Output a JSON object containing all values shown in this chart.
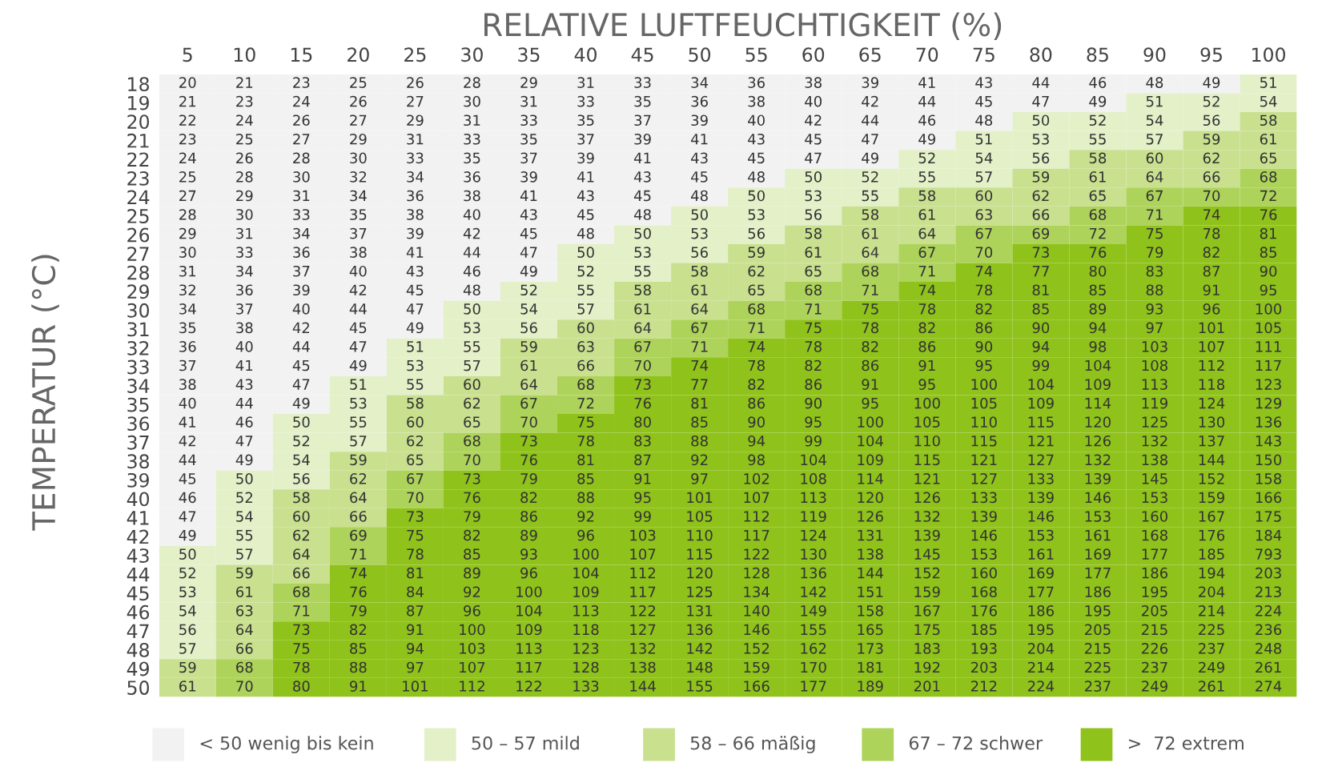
{
  "chart_data": {
    "type": "heatmap",
    "title": "RELATIVE LUFTFEUCHTIGKEIT (%)",
    "ylabel": "TEMPERATUR (°C)",
    "categories": [
      "5",
      "10",
      "15",
      "20",
      "25",
      "30",
      "35",
      "40",
      "45",
      "50",
      "55",
      "60",
      "65",
      "70",
      "75",
      "80",
      "85",
      "90",
      "95",
      "100"
    ],
    "y_categories": [
      "18",
      "19",
      "20",
      "21",
      "22",
      "23",
      "24",
      "25",
      "26",
      "27",
      "28",
      "29",
      "30",
      "31",
      "32",
      "33",
      "34",
      "35",
      "36",
      "37",
      "38",
      "39",
      "40",
      "41",
      "42",
      "43",
      "44",
      "45",
      "46",
      "47",
      "48",
      "49",
      "50"
    ],
    "cells": [
      [
        20,
        21,
        23,
        25,
        26,
        28,
        29,
        31,
        33,
        34,
        36,
        38,
        39,
        41,
        43,
        44,
        46,
        48,
        49,
        51
      ],
      [
        21,
        23,
        24,
        26,
        27,
        30,
        31,
        33,
        35,
        36,
        38,
        40,
        42,
        44,
        45,
        47,
        49,
        51,
        52,
        54
      ],
      [
        22,
        24,
        26,
        27,
        29,
        31,
        33,
        35,
        37,
        39,
        40,
        42,
        44,
        46,
        48,
        50,
        52,
        54,
        56,
        58
      ],
      [
        23,
        25,
        27,
        29,
        31,
        33,
        35,
        37,
        39,
        41,
        43,
        45,
        47,
        49,
        51,
        53,
        55,
        57,
        59,
        61
      ],
      [
        24,
        26,
        28,
        30,
        33,
        35,
        37,
        39,
        41,
        43,
        45,
        47,
        49,
        52,
        54,
        56,
        58,
        60,
        62,
        65
      ],
      [
        25,
        28,
        30,
        32,
        34,
        36,
        39,
        41,
        43,
        45,
        48,
        50,
        52,
        55,
        57,
        59,
        61,
        64,
        66,
        68
      ],
      [
        27,
        29,
        31,
        34,
        36,
        38,
        41,
        43,
        45,
        48,
        50,
        53,
        55,
        58,
        60,
        62,
        65,
        67,
        70,
        72
      ],
      [
        28,
        30,
        33,
        35,
        38,
        40,
        43,
        45,
        48,
        50,
        53,
        56,
        58,
        61,
        63,
        66,
        68,
        71,
        74,
        76
      ],
      [
        29,
        31,
        34,
        37,
        39,
        42,
        45,
        48,
        50,
        53,
        56,
        58,
        61,
        64,
        67,
        69,
        72,
        75,
        78,
        81
      ],
      [
        30,
        33,
        36,
        38,
        41,
        44,
        47,
        50,
        53,
        56,
        59,
        61,
        64,
        67,
        70,
        73,
        76,
        79,
        82,
        85
      ],
      [
        31,
        34,
        37,
        40,
        43,
        46,
        49,
        52,
        55,
        58,
        62,
        65,
        68,
        71,
        74,
        77,
        80,
        83,
        87,
        90
      ],
      [
        32,
        36,
        39,
        42,
        45,
        48,
        52,
        55,
        58,
        61,
        65,
        68,
        71,
        74,
        78,
        81,
        85,
        88,
        91,
        95
      ],
      [
        34,
        37,
        40,
        44,
        47,
        50,
        54,
        57,
        61,
        64,
        68,
        71,
        75,
        78,
        82,
        85,
        89,
        93,
        96,
        100
      ],
      [
        35,
        38,
        42,
        45,
        49,
        53,
        56,
        60,
        64,
        67,
        71,
        75,
        78,
        82,
        86,
        90,
        94,
        97,
        101,
        105
      ],
      [
        36,
        40,
        44,
        47,
        51,
        55,
        59,
        63,
        67,
        71,
        74,
        78,
        82,
        86,
        90,
        94,
        98,
        103,
        107,
        111
      ],
      [
        37,
        41,
        45,
        49,
        53,
        57,
        61,
        66,
        70,
        74,
        78,
        82,
        86,
        91,
        95,
        99,
        104,
        108,
        112,
        117
      ],
      [
        38,
        43,
        47,
        51,
        55,
        60,
        64,
        68,
        73,
        77,
        82,
        86,
        91,
        95,
        100,
        104,
        109,
        113,
        118,
        123
      ],
      [
        40,
        44,
        49,
        53,
        58,
        62,
        67,
        72,
        76,
        81,
        86,
        90,
        95,
        100,
        105,
        109,
        114,
        119,
        124,
        129
      ],
      [
        41,
        46,
        50,
        55,
        60,
        65,
        70,
        75,
        80,
        85,
        90,
        95,
        100,
        105,
        110,
        115,
        120,
        125,
        130,
        136
      ],
      [
        42,
        47,
        52,
        57,
        62,
        68,
        73,
        78,
        83,
        88,
        94,
        99,
        104,
        110,
        115,
        121,
        126,
        132,
        137,
        143
      ],
      [
        44,
        49,
        54,
        59,
        65,
        70,
        76,
        81,
        87,
        92,
        98,
        104,
        109,
        115,
        121,
        127,
        132,
        138,
        144,
        150
      ],
      [
        45,
        50,
        56,
        62,
        67,
        73,
        79,
        85,
        91,
        97,
        102,
        108,
        114,
        121,
        127,
        133,
        139,
        145,
        152,
        158
      ],
      [
        46,
        52,
        58,
        64,
        70,
        76,
        82,
        88,
        95,
        101,
        107,
        113,
        120,
        126,
        133,
        139,
        146,
        153,
        159,
        166
      ],
      [
        47,
        54,
        60,
        66,
        73,
        79,
        86,
        92,
        99,
        105,
        112,
        119,
        126,
        132,
        139,
        146,
        153,
        160,
        167,
        175
      ],
      [
        49,
        55,
        62,
        69,
        75,
        82,
        89,
        96,
        103,
        110,
        117,
        124,
        131,
        139,
        146,
        153,
        161,
        168,
        176,
        184
      ],
      [
        50,
        57,
        64,
        71,
        78,
        85,
        93,
        100,
        107,
        115,
        122,
        130,
        138,
        145,
        153,
        161,
        169,
        177,
        185,
        793
      ],
      [
        52,
        59,
        66,
        74,
        81,
        89,
        96,
        104,
        112,
        120,
        128,
        136,
        144,
        152,
        160,
        169,
        177,
        186,
        194,
        203
      ],
      [
        53,
        61,
        68,
        76,
        84,
        92,
        100,
        109,
        117,
        125,
        134,
        142,
        151,
        159,
        168,
        177,
        186,
        195,
        204,
        213
      ],
      [
        54,
        63,
        71,
        79,
        87,
        96,
        104,
        113,
        122,
        131,
        140,
        149,
        158,
        167,
        176,
        186,
        195,
        205,
        214,
        224
      ],
      [
        56,
        64,
        73,
        82,
        91,
        100,
        109,
        118,
        127,
        136,
        146,
        155,
        165,
        175,
        185,
        195,
        205,
        215,
        225,
        236
      ],
      [
        57,
        66,
        75,
        85,
        94,
        103,
        113,
        123,
        132,
        142,
        152,
        162,
        173,
        183,
        193,
        204,
        215,
        226,
        237,
        248
      ],
      [
        59,
        68,
        78,
        88,
        97,
        107,
        117,
        128,
        138,
        148,
        159,
        170,
        181,
        192,
        203,
        214,
        225,
        237,
        249,
        261
      ],
      [
        61,
        70,
        80,
        91,
        101,
        112,
        122,
        133,
        144,
        155,
        166,
        177,
        189,
        201,
        212,
        224,
        237,
        249,
        261,
        274
      ]
    ],
    "colors": [
      [
        "#f2f2f2",
        "#f2f2f2",
        "#f2f2f2",
        "#f2f2f2",
        "#f2f2f2",
        "#f2f2f2",
        "#f2f2f2",
        "#f2f2f2",
        "#f2f2f2",
        "#f2f2f2",
        "#f2f2f2",
        "#f2f2f2",
        "#f2f2f2",
        "#f2f2f2",
        "#f2f2f2",
        "#f2f2f2",
        "#f2f2f2",
        "#f2f2f2",
        "#f2f2f2",
        "#e3f0c8"
      ],
      [
        "#f2f2f2",
        "#f2f2f2",
        "#f2f2f2",
        "#f2f2f2",
        "#f2f2f2",
        "#f2f2f2",
        "#f2f2f2",
        "#f2f2f2",
        "#f2f2f2",
        "#f2f2f2",
        "#f2f2f2",
        "#f2f2f2",
        "#f2f2f2",
        "#f2f2f2",
        "#f2f2f2",
        "#f2f2f2",
        "#f2f2f2",
        "#e3f0c8",
        "#e3f0c8",
        "#e3f0c8"
      ],
      [
        "#f2f2f2",
        "#f2f2f2",
        "#f2f2f2",
        "#f2f2f2",
        "#f2f2f2",
        "#f2f2f2",
        "#f2f2f2",
        "#f2f2f2",
        "#f2f2f2",
        "#f2f2f2",
        "#f2f2f2",
        "#f2f2f2",
        "#f2f2f2",
        "#f2f2f2",
        "#f2f2f2",
        "#e3f0c8",
        "#e3f0c8",
        "#e3f0c8",
        "#e3f0c8",
        "#c9e08f"
      ],
      [
        "#f2f2f2",
        "#f2f2f2",
        "#f2f2f2",
        "#f2f2f2",
        "#f2f2f2",
        "#f2f2f2",
        "#f2f2f2",
        "#f2f2f2",
        "#f2f2f2",
        "#f2f2f2",
        "#f2f2f2",
        "#f2f2f2",
        "#f2f2f2",
        "#f2f2f2",
        "#e3f0c8",
        "#e3f0c8",
        "#e3f0c8",
        "#e3f0c8",
        "#c9e08f",
        "#c9e08f"
      ],
      [
        "#f2f2f2",
        "#f2f2f2",
        "#f2f2f2",
        "#f2f2f2",
        "#f2f2f2",
        "#f2f2f2",
        "#f2f2f2",
        "#f2f2f2",
        "#f2f2f2",
        "#f2f2f2",
        "#f2f2f2",
        "#f2f2f2",
        "#f2f2f2",
        "#e3f0c8",
        "#e3f0c8",
        "#e3f0c8",
        "#c9e08f",
        "#c9e08f",
        "#c9e08f",
        "#c9e08f"
      ],
      [
        "#f2f2f2",
        "#f2f2f2",
        "#f2f2f2",
        "#f2f2f2",
        "#f2f2f2",
        "#f2f2f2",
        "#f2f2f2",
        "#f2f2f2",
        "#f2f2f2",
        "#f2f2f2",
        "#f2f2f2",
        "#e3f0c8",
        "#e3f0c8",
        "#e3f0c8",
        "#e3f0c8",
        "#c9e08f",
        "#c9e08f",
        "#c9e08f",
        "#c9e08f",
        "#aed35a"
      ],
      [
        "#f2f2f2",
        "#f2f2f2",
        "#f2f2f2",
        "#f2f2f2",
        "#f2f2f2",
        "#f2f2f2",
        "#f2f2f2",
        "#f2f2f2",
        "#f2f2f2",
        "#f2f2f2",
        "#e3f0c8",
        "#e3f0c8",
        "#e3f0c8",
        "#c9e08f",
        "#c9e08f",
        "#c9e08f",
        "#c9e08f",
        "#aed35a",
        "#aed35a",
        "#aed35a"
      ],
      [
        "#f2f2f2",
        "#f2f2f2",
        "#f2f2f2",
        "#f2f2f2",
        "#f2f2f2",
        "#f2f2f2",
        "#f2f2f2",
        "#f2f2f2",
        "#f2f2f2",
        "#e3f0c8",
        "#e3f0c8",
        "#e3f0c8",
        "#c9e08f",
        "#c9e08f",
        "#c9e08f",
        "#c9e08f",
        "#aed35a",
        "#aed35a",
        "#8fc21a",
        "#8fc21a"
      ],
      [
        "#f2f2f2",
        "#f2f2f2",
        "#f2f2f2",
        "#f2f2f2",
        "#f2f2f2",
        "#f2f2f2",
        "#f2f2f2",
        "#f2f2f2",
        "#e3f0c8",
        "#e3f0c8",
        "#e3f0c8",
        "#c9e08f",
        "#c9e08f",
        "#c9e08f",
        "#aed35a",
        "#aed35a",
        "#aed35a",
        "#8fc21a",
        "#8fc21a",
        "#8fc21a"
      ],
      [
        "#f2f2f2",
        "#f2f2f2",
        "#f2f2f2",
        "#f2f2f2",
        "#f2f2f2",
        "#f2f2f2",
        "#f2f2f2",
        "#e3f0c8",
        "#e3f0c8",
        "#e3f0c8",
        "#c9e08f",
        "#c9e08f",
        "#c9e08f",
        "#aed35a",
        "#aed35a",
        "#8fc21a",
        "#8fc21a",
        "#8fc21a",
        "#8fc21a",
        "#8fc21a"
      ],
      [
        "#f2f2f2",
        "#f2f2f2",
        "#f2f2f2",
        "#f2f2f2",
        "#f2f2f2",
        "#f2f2f2",
        "#f2f2f2",
        "#e3f0c8",
        "#e3f0c8",
        "#c9e08f",
        "#c9e08f",
        "#c9e08f",
        "#aed35a",
        "#aed35a",
        "#8fc21a",
        "#8fc21a",
        "#8fc21a",
        "#8fc21a",
        "#8fc21a",
        "#8fc21a"
      ],
      [
        "#f2f2f2",
        "#f2f2f2",
        "#f2f2f2",
        "#f2f2f2",
        "#f2f2f2",
        "#f2f2f2",
        "#e3f0c8",
        "#e3f0c8",
        "#c9e08f",
        "#c9e08f",
        "#c9e08f",
        "#aed35a",
        "#aed35a",
        "#8fc21a",
        "#8fc21a",
        "#8fc21a",
        "#8fc21a",
        "#8fc21a",
        "#8fc21a",
        "#8fc21a"
      ],
      [
        "#f2f2f2",
        "#f2f2f2",
        "#f2f2f2",
        "#f2f2f2",
        "#f2f2f2",
        "#e3f0c8",
        "#e3f0c8",
        "#e3f0c8",
        "#c9e08f",
        "#c9e08f",
        "#aed35a",
        "#aed35a",
        "#8fc21a",
        "#8fc21a",
        "#8fc21a",
        "#8fc21a",
        "#8fc21a",
        "#8fc21a",
        "#8fc21a",
        "#8fc21a"
      ],
      [
        "#f2f2f2",
        "#f2f2f2",
        "#f2f2f2",
        "#f2f2f2",
        "#f2f2f2",
        "#e3f0c8",
        "#e3f0c8",
        "#c9e08f",
        "#c9e08f",
        "#aed35a",
        "#aed35a",
        "#8fc21a",
        "#8fc21a",
        "#8fc21a",
        "#8fc21a",
        "#8fc21a",
        "#8fc21a",
        "#8fc21a",
        "#8fc21a",
        "#8fc21a"
      ],
      [
        "#f2f2f2",
        "#f2f2f2",
        "#f2f2f2",
        "#f2f2f2",
        "#e3f0c8",
        "#e3f0c8",
        "#c9e08f",
        "#c9e08f",
        "#aed35a",
        "#aed35a",
        "#8fc21a",
        "#8fc21a",
        "#8fc21a",
        "#8fc21a",
        "#8fc21a",
        "#8fc21a",
        "#8fc21a",
        "#8fc21a",
        "#8fc21a",
        "#8fc21a"
      ],
      [
        "#f2f2f2",
        "#f2f2f2",
        "#f2f2f2",
        "#f2f2f2",
        "#e3f0c8",
        "#e3f0c8",
        "#c9e08f",
        "#c9e08f",
        "#aed35a",
        "#8fc21a",
        "#8fc21a",
        "#8fc21a",
        "#8fc21a",
        "#8fc21a",
        "#8fc21a",
        "#8fc21a",
        "#8fc21a",
        "#8fc21a",
        "#8fc21a",
        "#8fc21a"
      ],
      [
        "#f2f2f2",
        "#f2f2f2",
        "#f2f2f2",
        "#e3f0c8",
        "#e3f0c8",
        "#c9e08f",
        "#c9e08f",
        "#aed35a",
        "#8fc21a",
        "#8fc21a",
        "#8fc21a",
        "#8fc21a",
        "#8fc21a",
        "#8fc21a",
        "#8fc21a",
        "#8fc21a",
        "#8fc21a",
        "#8fc21a",
        "#8fc21a",
        "#8fc21a"
      ],
      [
        "#f2f2f2",
        "#f2f2f2",
        "#f2f2f2",
        "#e3f0c8",
        "#c9e08f",
        "#c9e08f",
        "#aed35a",
        "#aed35a",
        "#8fc21a",
        "#8fc21a",
        "#8fc21a",
        "#8fc21a",
        "#8fc21a",
        "#8fc21a",
        "#8fc21a",
        "#8fc21a",
        "#8fc21a",
        "#8fc21a",
        "#8fc21a",
        "#8fc21a"
      ],
      [
        "#f2f2f2",
        "#f2f2f2",
        "#e3f0c8",
        "#e3f0c8",
        "#c9e08f",
        "#c9e08f",
        "#aed35a",
        "#8fc21a",
        "#8fc21a",
        "#8fc21a",
        "#8fc21a",
        "#8fc21a",
        "#8fc21a",
        "#8fc21a",
        "#8fc21a",
        "#8fc21a",
        "#8fc21a",
        "#8fc21a",
        "#8fc21a",
        "#8fc21a"
      ],
      [
        "#f2f2f2",
        "#f2f2f2",
        "#e3f0c8",
        "#e3f0c8",
        "#c9e08f",
        "#aed35a",
        "#8fc21a",
        "#8fc21a",
        "#8fc21a",
        "#8fc21a",
        "#8fc21a",
        "#8fc21a",
        "#8fc21a",
        "#8fc21a",
        "#8fc21a",
        "#8fc21a",
        "#8fc21a",
        "#8fc21a",
        "#8fc21a",
        "#8fc21a"
      ],
      [
        "#f2f2f2",
        "#f2f2f2",
        "#e3f0c8",
        "#c9e08f",
        "#c9e08f",
        "#aed35a",
        "#8fc21a",
        "#8fc21a",
        "#8fc21a",
        "#8fc21a",
        "#8fc21a",
        "#8fc21a",
        "#8fc21a",
        "#8fc21a",
        "#8fc21a",
        "#8fc21a",
        "#8fc21a",
        "#8fc21a",
        "#8fc21a",
        "#8fc21a"
      ],
      [
        "#f2f2f2",
        "#e3f0c8",
        "#e3f0c8",
        "#c9e08f",
        "#aed35a",
        "#8fc21a",
        "#8fc21a",
        "#8fc21a",
        "#8fc21a",
        "#8fc21a",
        "#8fc21a",
        "#8fc21a",
        "#8fc21a",
        "#8fc21a",
        "#8fc21a",
        "#8fc21a",
        "#8fc21a",
        "#8fc21a",
        "#8fc21a",
        "#8fc21a"
      ],
      [
        "#f2f2f2",
        "#e3f0c8",
        "#c9e08f",
        "#c9e08f",
        "#aed35a",
        "#8fc21a",
        "#8fc21a",
        "#8fc21a",
        "#8fc21a",
        "#8fc21a",
        "#8fc21a",
        "#8fc21a",
        "#8fc21a",
        "#8fc21a",
        "#8fc21a",
        "#8fc21a",
        "#8fc21a",
        "#8fc21a",
        "#8fc21a",
        "#8fc21a"
      ],
      [
        "#f2f2f2",
        "#e3f0c8",
        "#c9e08f",
        "#c9e08f",
        "#8fc21a",
        "#8fc21a",
        "#8fc21a",
        "#8fc21a",
        "#8fc21a",
        "#8fc21a",
        "#8fc21a",
        "#8fc21a",
        "#8fc21a",
        "#8fc21a",
        "#8fc21a",
        "#8fc21a",
        "#8fc21a",
        "#8fc21a",
        "#8fc21a",
        "#8fc21a"
      ],
      [
        "#f2f2f2",
        "#e3f0c8",
        "#c9e08f",
        "#aed35a",
        "#8fc21a",
        "#8fc21a",
        "#8fc21a",
        "#8fc21a",
        "#8fc21a",
        "#8fc21a",
        "#8fc21a",
        "#8fc21a",
        "#8fc21a",
        "#8fc21a",
        "#8fc21a",
        "#8fc21a",
        "#8fc21a",
        "#8fc21a",
        "#8fc21a",
        "#8fc21a"
      ],
      [
        "#e3f0c8",
        "#e3f0c8",
        "#c9e08f",
        "#aed35a",
        "#8fc21a",
        "#8fc21a",
        "#8fc21a",
        "#8fc21a",
        "#8fc21a",
        "#8fc21a",
        "#8fc21a",
        "#8fc21a",
        "#8fc21a",
        "#8fc21a",
        "#8fc21a",
        "#8fc21a",
        "#8fc21a",
        "#8fc21a",
        "#8fc21a",
        "#8fc21a"
      ],
      [
        "#e3f0c8",
        "#c9e08f",
        "#c9e08f",
        "#8fc21a",
        "#8fc21a",
        "#8fc21a",
        "#8fc21a",
        "#8fc21a",
        "#8fc21a",
        "#8fc21a",
        "#8fc21a",
        "#8fc21a",
        "#8fc21a",
        "#8fc21a",
        "#8fc21a",
        "#8fc21a",
        "#8fc21a",
        "#8fc21a",
        "#8fc21a",
        "#8fc21a"
      ],
      [
        "#e3f0c8",
        "#c9e08f",
        "#aed35a",
        "#8fc21a",
        "#8fc21a",
        "#8fc21a",
        "#8fc21a",
        "#8fc21a",
        "#8fc21a",
        "#8fc21a",
        "#8fc21a",
        "#8fc21a",
        "#8fc21a",
        "#8fc21a",
        "#8fc21a",
        "#8fc21a",
        "#8fc21a",
        "#8fc21a",
        "#8fc21a",
        "#8fc21a"
      ],
      [
        "#e3f0c8",
        "#c9e08f",
        "#aed35a",
        "#8fc21a",
        "#8fc21a",
        "#8fc21a",
        "#8fc21a",
        "#8fc21a",
        "#8fc21a",
        "#8fc21a",
        "#8fc21a",
        "#8fc21a",
        "#8fc21a",
        "#8fc21a",
        "#8fc21a",
        "#8fc21a",
        "#8fc21a",
        "#8fc21a",
        "#8fc21a",
        "#8fc21a"
      ],
      [
        "#e3f0c8",
        "#c9e08f",
        "#8fc21a",
        "#8fc21a",
        "#8fc21a",
        "#8fc21a",
        "#8fc21a",
        "#8fc21a",
        "#8fc21a",
        "#8fc21a",
        "#8fc21a",
        "#8fc21a",
        "#8fc21a",
        "#8fc21a",
        "#8fc21a",
        "#8fc21a",
        "#8fc21a",
        "#8fc21a",
        "#8fc21a",
        "#8fc21a"
      ],
      [
        "#e3f0c8",
        "#c9e08f",
        "#8fc21a",
        "#8fc21a",
        "#8fc21a",
        "#8fc21a",
        "#8fc21a",
        "#8fc21a",
        "#8fc21a",
        "#8fc21a",
        "#8fc21a",
        "#8fc21a",
        "#8fc21a",
        "#8fc21a",
        "#8fc21a",
        "#8fc21a",
        "#8fc21a",
        "#8fc21a",
        "#8fc21a",
        "#8fc21a"
      ],
      [
        "#c9e08f",
        "#aed35a",
        "#8fc21a",
        "#8fc21a",
        "#8fc21a",
        "#8fc21a",
        "#8fc21a",
        "#8fc21a",
        "#8fc21a",
        "#8fc21a",
        "#8fc21a",
        "#8fc21a",
        "#8fc21a",
        "#8fc21a",
        "#8fc21a",
        "#8fc21a",
        "#8fc21a",
        "#8fc21a",
        "#8fc21a",
        "#8fc21a"
      ],
      [
        "#c9e08f",
        "#aed35a",
        "#8fc21a",
        "#8fc21a",
        "#8fc21a",
        "#8fc21a",
        "#8fc21a",
        "#8fc21a",
        "#8fc21a",
        "#8fc21a",
        "#8fc21a",
        "#8fc21a",
        "#8fc21a",
        "#8fc21a",
        "#8fc21a",
        "#8fc21a",
        "#8fc21a",
        "#8fc21a",
        "#8fc21a",
        "#8fc21a"
      ]
    ],
    "annotations": [
      "< 50 wenig bis kein",
      "50 – 57 mild",
      "58 – 66 mäßig",
      "67 – 72 schwer",
      ">  72 extrem"
    ],
    "data_labels": true
  }
}
